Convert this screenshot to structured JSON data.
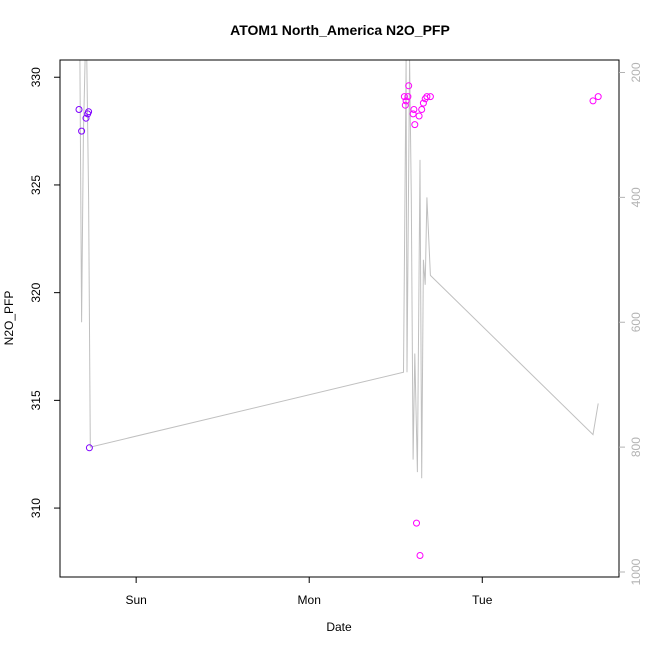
{
  "chart_data": {
    "type": "scatter",
    "title": "ATOM1 North_America N2O_PFP",
    "xlabel": "Date",
    "ylabel": "N2O_PFP",
    "x_ticks": [
      "Sun",
      "Mon",
      "Tue"
    ],
    "x_tick_positions": [
      1,
      2,
      3
    ],
    "xlim": [
      0.56,
      3.79
    ],
    "ylim": [
      306.8,
      330.8
    ],
    "y_ticks": [
      310,
      315,
      320,
      325,
      330
    ],
    "y2_ticks": [
      200,
      400,
      600,
      800,
      1000
    ],
    "y2lim": [
      1008,
      180
    ],
    "y2_direction": "reversed",
    "grid": false,
    "points": [
      {
        "x": 0.67,
        "y": 328.5,
        "color": "#7f00ff"
      },
      {
        "x": 0.685,
        "y": 327.5,
        "color": "#7f00ff"
      },
      {
        "x": 0.71,
        "y": 328.1,
        "color": "#7f00ff"
      },
      {
        "x": 0.72,
        "y": 328.3,
        "color": "#7f00ff"
      },
      {
        "x": 0.725,
        "y": 328.4,
        "color": "#7f00ff"
      },
      {
        "x": 0.73,
        "y": 312.8,
        "color": "#7f00ff"
      },
      {
        "x": 2.55,
        "y": 329.1,
        "color": "#ff00ff"
      },
      {
        "x": 2.555,
        "y": 328.7,
        "color": "#ff00ff"
      },
      {
        "x": 2.56,
        "y": 328.9,
        "color": "#ff00ff"
      },
      {
        "x": 2.57,
        "y": 329.1,
        "color": "#ff00ff"
      },
      {
        "x": 2.575,
        "y": 329.6,
        "color": "#ff00ff"
      },
      {
        "x": 2.6,
        "y": 328.3,
        "color": "#ff00ff"
      },
      {
        "x": 2.605,
        "y": 328.5,
        "color": "#ff00ff"
      },
      {
        "x": 2.61,
        "y": 327.8,
        "color": "#ff00ff"
      },
      {
        "x": 2.62,
        "y": 309.3,
        "color": "#ff00ff"
      },
      {
        "x": 2.635,
        "y": 328.2,
        "color": "#ff00ff"
      },
      {
        "x": 2.64,
        "y": 307.8,
        "color": "#ff00ff"
      },
      {
        "x": 2.65,
        "y": 328.5,
        "color": "#ff00ff"
      },
      {
        "x": 2.66,
        "y": 328.8,
        "color": "#ff00ff"
      },
      {
        "x": 2.67,
        "y": 329.0,
        "color": "#ff00ff"
      },
      {
        "x": 2.68,
        "y": 329.1,
        "color": "#ff00ff"
      },
      {
        "x": 2.7,
        "y": 329.1,
        "color": "#ff00ff"
      },
      {
        "x": 3.64,
        "y": 328.9,
        "color": "#ff00ff"
      },
      {
        "x": 3.67,
        "y": 329.1,
        "color": "#ff00ff"
      }
    ],
    "line2": {
      "color": "#c0c0c0",
      "x": [
        0.675,
        0.685,
        0.695,
        0.705,
        0.715,
        0.725,
        0.735,
        2.545,
        2.56,
        2.565,
        2.58,
        2.59,
        2.6,
        2.61,
        2.625,
        2.64,
        2.65,
        2.66,
        2.67,
        2.68,
        2.7,
        3.64,
        3.67
      ],
      "y": [
        180,
        600,
        300,
        180,
        180,
        400,
        800,
        680,
        180,
        680,
        180,
        400,
        820,
        650,
        840,
        340,
        850,
        500,
        540,
        400,
        525,
        780,
        730
      ]
    }
  }
}
